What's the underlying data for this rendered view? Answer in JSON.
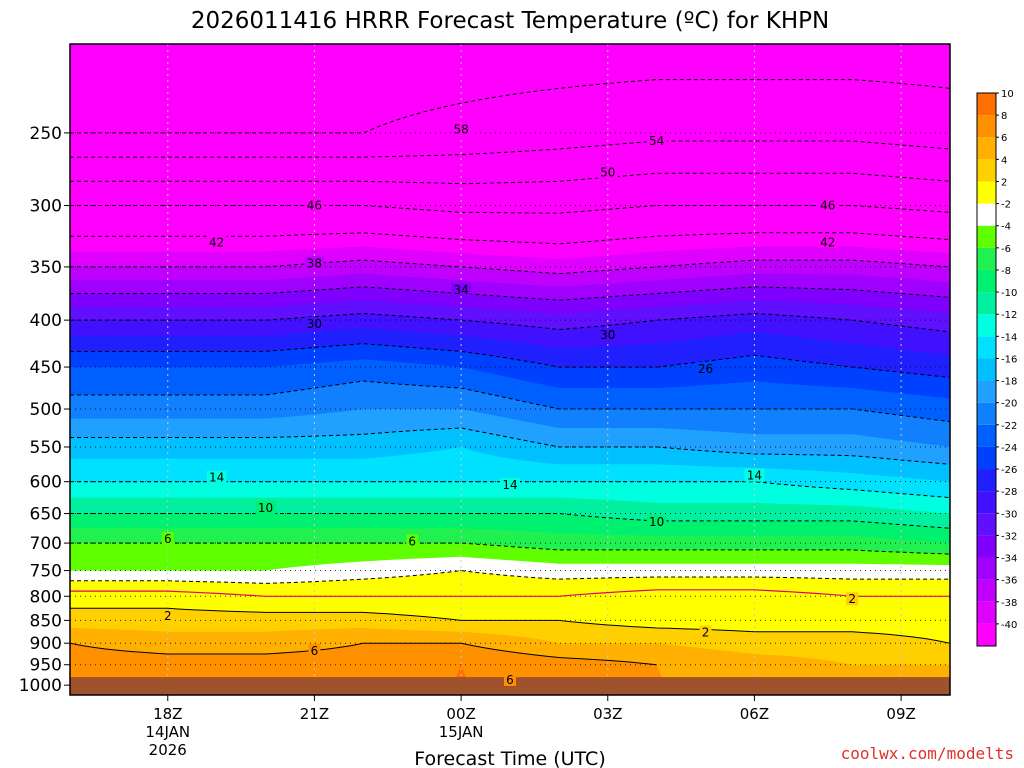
{
  "chart_data": {
    "type": "heatmap",
    "title": "2026011416 HRRR Forecast Temperature (ºC) for KHPN",
    "xlabel": "Forecast Time (UTC)",
    "ylabel": "",
    "x_ticks": [
      {
        "hour": 18,
        "label": "18Z",
        "date": "14JAN",
        "year": "2026"
      },
      {
        "hour": 21,
        "label": "21Z",
        "date": "",
        "year": ""
      },
      {
        "hour": 24,
        "label": "00Z",
        "date": "15JAN",
        "year": ""
      },
      {
        "hour": 27,
        "label": "03Z",
        "date": "",
        "year": ""
      },
      {
        "hour": 30,
        "label": "06Z",
        "date": "",
        "year": ""
      },
      {
        "hour": 33,
        "label": "09Z",
        "date": "",
        "year": ""
      }
    ],
    "xlim": [
      16,
      34
    ],
    "y_ticks": [
      250,
      300,
      350,
      400,
      450,
      500,
      550,
      600,
      650,
      700,
      750,
      800,
      850,
      900,
      950,
      1000
    ],
    "ylim": [
      1025,
      200
    ],
    "yscale": "log",
    "grid": true,
    "colorbar": {
      "position": "right",
      "bounds": [
        -42,
        -40,
        -38,
        -36,
        -34,
        -32,
        -30,
        -28,
        -26,
        -24,
        -22,
        -20,
        -18,
        -16,
        -14,
        -12,
        -10,
        -8,
        -6,
        -4,
        -2,
        2,
        4,
        6,
        8,
        10,
        12
      ],
      "labels": [
        "-40",
        "-38",
        "-36",
        "-34",
        "-32",
        "-30",
        "-28",
        "-26",
        "-24",
        "-22",
        "-20",
        "-18",
        "-16",
        "-14",
        "-12",
        "-10",
        "-8",
        "-6",
        "-4",
        "-2",
        "2",
        "4",
        "6",
        "8",
        "10"
      ],
      "colors": [
        "#ff00ff",
        "#e000ff",
        "#c000ff",
        "#a000ff",
        "#8000ff",
        "#6010ff",
        "#4010ff",
        "#2020ff",
        "#0040ff",
        "#0060ff",
        "#1080ff",
        "#20a0ff",
        "#00c0ff",
        "#00e0ff",
        "#00ffe0",
        "#00f0a0",
        "#00f070",
        "#20f050",
        "#60ff00",
        "#ffffff",
        "#ffff00",
        "#ffd000",
        "#ffb000",
        "#ff9000",
        "#ff7000"
      ]
    },
    "surface_pressure": 980,
    "surface_color": "#a0522d",
    "hours": [
      16,
      18,
      20,
      22,
      24,
      26,
      28,
      30,
      32,
      34
    ],
    "levels": [
      {
        "p": 200,
        "t": [
          -60,
          -60,
          -60,
          -60,
          -60,
          -60,
          -60,
          -60,
          -60,
          -60
        ]
      },
      {
        "p": 250,
        "t": [
          -58,
          -58,
          -58,
          -58,
          -57,
          -56,
          -55,
          -55,
          -55,
          -56
        ]
      },
      {
        "p": 300,
        "t": [
          -46,
          -46,
          -46,
          -46,
          -47,
          -47,
          -46,
          -46,
          -46,
          -47
        ]
      },
      {
        "p": 350,
        "t": [
          -38,
          -38,
          -38,
          -37,
          -38,
          -39,
          -38,
          -37,
          -37,
          -38
        ]
      },
      {
        "p": 400,
        "t": [
          -30,
          -30,
          -30,
          -29,
          -30,
          -31,
          -30,
          -29,
          -30,
          -31
        ]
      },
      {
        "p": 450,
        "t": [
          -24,
          -24,
          -24,
          -23,
          -24,
          -26,
          -26,
          -25,
          -26,
          -27
        ]
      },
      {
        "p": 500,
        "t": [
          -21,
          -21,
          -21,
          -20,
          -20,
          -22,
          -22,
          -22,
          -22,
          -23
        ]
      },
      {
        "p": 550,
        "t": [
          -17,
          -17,
          -17,
          -17,
          -16,
          -18,
          -18,
          -19,
          -19,
          -20
        ]
      },
      {
        "p": 600,
        "t": [
          -14,
          -14,
          -14,
          -14,
          -14,
          -14,
          -14,
          -14,
          -15,
          -16
        ]
      },
      {
        "p": 650,
        "t": [
          -10,
          -10,
          -10,
          -10,
          -10,
          -10,
          -11,
          -11,
          -11,
          -12
        ]
      },
      {
        "p": 700,
        "t": [
          -6,
          -6,
          -6,
          -6,
          -6,
          -7,
          -7,
          -7,
          -7,
          -8
        ]
      },
      {
        "p": 750,
        "t": [
          -4,
          -4,
          -4,
          -3,
          -2,
          -3,
          -3,
          -3,
          -3,
          -3
        ]
      },
      {
        "p": 800,
        "t": [
          1,
          1,
          0,
          0,
          0,
          0,
          1,
          1,
          0,
          0
        ]
      },
      {
        "p": 850,
        "t": [
          3,
          3,
          3,
          3,
          2,
          2,
          1,
          1,
          1,
          1
        ]
      },
      {
        "p": 900,
        "t": [
          6,
          5,
          5,
          6,
          6,
          4,
          4,
          3,
          3,
          2
        ]
      },
      {
        "p": 950,
        "t": [
          7,
          7,
          7,
          7,
          8,
          7,
          6,
          5,
          4,
          4
        ]
      },
      {
        "p": 1000,
        "t": [
          7,
          7,
          7,
          7,
          8,
          7,
          6,
          5,
          5,
          4
        ]
      }
    ],
    "contours": [
      {
        "value": -54,
        "label": "54",
        "label_at": [
          28,
          255
        ]
      },
      {
        "value": -58,
        "label": "58",
        "label_at": [
          24,
          248
        ]
      },
      {
        "value": -50,
        "label": "50",
        "label_at": [
          27,
          276
        ]
      },
      {
        "value": -46,
        "label": "46",
        "label_at": [
          21,
          300
        ]
      },
      {
        "value": -46,
        "label": "46",
        "label_at": [
          31.5,
          300
        ]
      },
      {
        "value": -42,
        "label": "42",
        "label_at": [
          19,
          329
        ]
      },
      {
        "value": -42,
        "label": "42",
        "label_at": [
          31.5,
          329
        ]
      },
      {
        "value": -38,
        "label": "38",
        "label_at": [
          21,
          347
        ]
      },
      {
        "value": -34,
        "label": "34",
        "label_at": [
          24,
          371
        ]
      },
      {
        "value": -30,
        "label": "30",
        "label_at": [
          21,
          404
        ]
      },
      {
        "value": -30,
        "label": "30",
        "label_at": [
          27,
          415
        ]
      },
      {
        "value": -26,
        "label": "26",
        "label_at": [
          29,
          452
        ]
      },
      {
        "value": -14,
        "label": "14",
        "label_at": [
          19,
          594
        ]
      },
      {
        "value": -14,
        "label": "14",
        "label_at": [
          25,
          605
        ]
      },
      {
        "value": -14,
        "label": "14",
        "label_at": [
          30,
          591
        ]
      },
      {
        "value": -10,
        "label": "10",
        "label_at": [
          20,
          641
        ]
      },
      {
        "value": -10,
        "label": "10",
        "label_at": [
          28,
          664
        ]
      },
      {
        "value": -6,
        "label": "6",
        "label_at": [
          18,
          693
        ]
      },
      {
        "value": -6,
        "label": "6",
        "label_at": [
          23,
          697
        ]
      },
      {
        "value": 2,
        "label": "2",
        "label_at": [
          18,
          841
        ]
      },
      {
        "value": 2,
        "label": "2",
        "label_at": [
          29,
          876
        ]
      },
      {
        "value": 2,
        "label": "2",
        "label_at": [
          32,
          806
        ]
      },
      {
        "value": 6,
        "label": "6",
        "label_at": [
          21,
          918
        ]
      },
      {
        "value": 6,
        "label": "6",
        "label_at": [
          25,
          987
        ]
      }
    ]
  },
  "site": "coolwx.com/modelts"
}
